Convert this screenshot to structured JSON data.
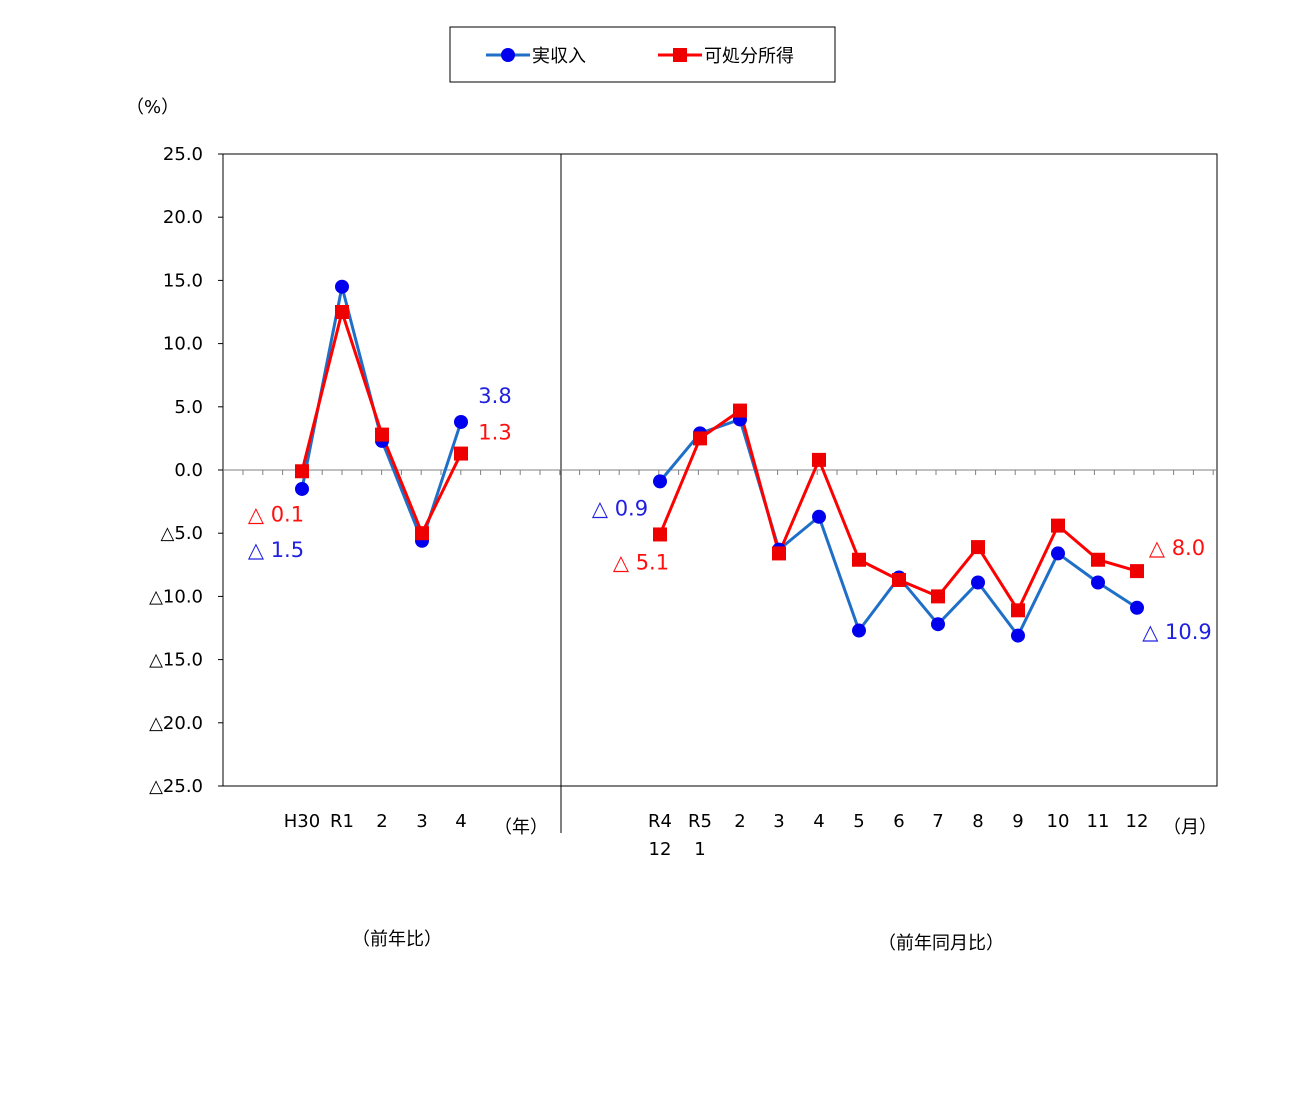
{
  "chart_data": {
    "type": "line",
    "y_unit_label": "（%）",
    "ylim": [
      -25.0,
      25.0
    ],
    "y_ticks": [
      {
        "value": 25,
        "label": "25.0"
      },
      {
        "value": 20,
        "label": "20.0"
      },
      {
        "value": 15,
        "label": "15.0"
      },
      {
        "value": 10,
        "label": "10.0"
      },
      {
        "value": 5,
        "label": "5.0"
      },
      {
        "value": 0,
        "label": "0.0"
      },
      {
        "value": -5,
        "label": "△5.0"
      },
      {
        "value": -10,
        "label": "△10.0"
      },
      {
        "value": -15,
        "label": "△15.0"
      },
      {
        "value": -20,
        "label": "△20.0"
      },
      {
        "value": -25,
        "label": "△25.0"
      }
    ],
    "legend": [
      {
        "name": "実収入",
        "color": "#1f6fc8",
        "marker": "circle",
        "marker_color": "#0000ee"
      },
      {
        "name": "可処分所得",
        "color": "#ff0000",
        "marker": "square",
        "marker_color": "#ee0000"
      }
    ],
    "annual": {
      "caption": "（前年比）",
      "unit": "（年）",
      "categories": [
        [
          "H30"
        ],
        [
          "R1"
        ],
        [
          "2"
        ],
        [
          "3"
        ],
        [
          "4"
        ]
      ],
      "series": [
        {
          "name": "実収入",
          "values": [
            -1.5,
            14.5,
            2.3,
            -5.6,
            3.8
          ]
        },
        {
          "name": "可処分所得",
          "values": [
            -0.1,
            12.5,
            2.8,
            -5.0,
            1.3
          ]
        }
      ],
      "labels": [
        {
          "series": 0,
          "index": 0,
          "text": "△ 1.5"
        },
        {
          "series": 1,
          "index": 0,
          "text": "△ 0.1"
        },
        {
          "series": 0,
          "index": 4,
          "text": "3.8"
        },
        {
          "series": 1,
          "index": 4,
          "text": "1.3"
        }
      ]
    },
    "monthly": {
      "caption": "（前年同月比）",
      "unit": "（月）",
      "categories": [
        [
          "R4",
          "12"
        ],
        [
          "R5",
          "1"
        ],
        [
          "2"
        ],
        [
          "3"
        ],
        [
          "4"
        ],
        [
          "5"
        ],
        [
          "6"
        ],
        [
          "7"
        ],
        [
          "8"
        ],
        [
          "9"
        ],
        [
          "10"
        ],
        [
          "11"
        ],
        [
          "12"
        ]
      ],
      "series": [
        {
          "name": "実収入",
          "values": [
            -0.9,
            2.9,
            4.0,
            -6.3,
            -3.7,
            -12.7,
            -8.5,
            -12.2,
            -8.9,
            -13.1,
            -6.6,
            -8.9,
            -10.9
          ]
        },
        {
          "name": "可処分所得",
          "values": [
            -5.1,
            2.5,
            4.7,
            -6.6,
            0.8,
            -7.1,
            -8.7,
            -10.0,
            -6.1,
            -11.1,
            -4.4,
            -7.1,
            -8.0
          ]
        }
      ],
      "labels": [
        {
          "series": 0,
          "index": 0,
          "text": "△ 0.9"
        },
        {
          "series": 1,
          "index": 0,
          "text": "△ 5.1"
        },
        {
          "series": 1,
          "index": 12,
          "text": "△ 8.0"
        },
        {
          "series": 0,
          "index": 12,
          "text": "△ 10.9"
        }
      ]
    }
  }
}
